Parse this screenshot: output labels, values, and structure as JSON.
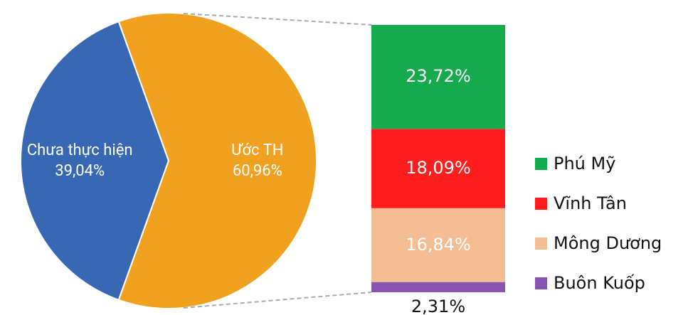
{
  "chart_data": {
    "type": "bar-of-pie",
    "pie": {
      "categories": [
        "Chưa thực hiện",
        "Ước TH"
      ],
      "values": [
        39.04,
        60.96
      ],
      "value_labels": [
        "39,04%",
        "60,96%"
      ],
      "colors": [
        "#3868b4",
        "#f0a120"
      ]
    },
    "bar": {
      "series": [
        {
          "name": "Phú Mỹ",
          "color": "#15ab4c",
          "values": [
            23.72
          ],
          "value_labels": [
            "23,72%"
          ]
        },
        {
          "name": "Vĩnh Tân",
          "color": "#ff1d1d",
          "values": [
            18.09
          ],
          "value_labels": [
            "18,09%"
          ]
        },
        {
          "name": "Mông Dương",
          "color": "#f5bd94",
          "values": [
            16.84
          ],
          "value_labels": [
            "16,84%"
          ]
        },
        {
          "name": "Buôn Kuốp",
          "color": "#8954b1",
          "values": [
            2.31
          ],
          "value_labels": [
            "2,31%"
          ]
        }
      ]
    }
  }
}
